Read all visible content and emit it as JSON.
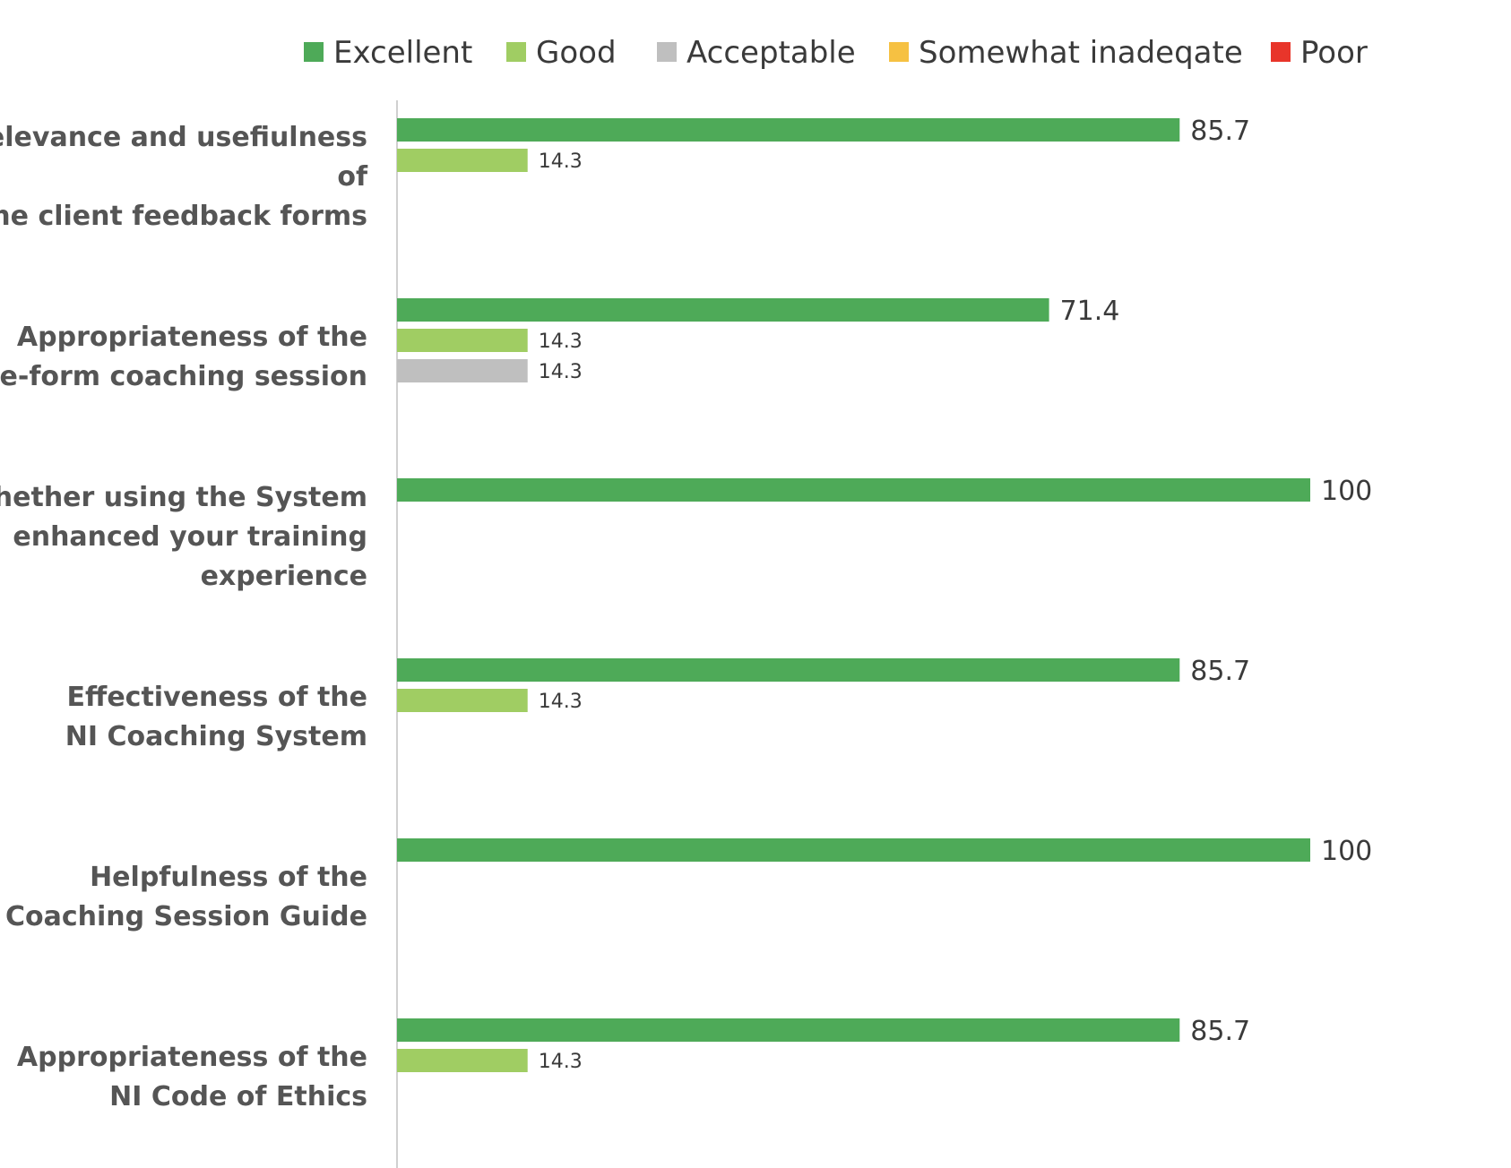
{
  "chart_data": {
    "type": "bar",
    "orientation": "horizontal",
    "title": "",
    "xlabel": "",
    "ylabel": "",
    "xlim": [
      0,
      100
    ],
    "grid": false,
    "legend_position": "top",
    "categories": [
      "Relevance and usefiulness of the client feedback forms",
      "Appropriateness of the free-form coaching session",
      "Whether using the System enhanced your training experience",
      "Effectiveness of the NI Coaching System",
      "Helpfulness of the Coaching Session Guide",
      "Appropriateness of the NI Code of Ethics"
    ],
    "category_lines": [
      [
        "Relevance and usefiulness",
        "of",
        "the client feedback forms"
      ],
      [
        "Appropriateness of the",
        "free-form coaching session"
      ],
      [
        "Whether using the System",
        "enhanced your training",
        "experience"
      ],
      [
        "Effectiveness of the",
        "NI Coaching System"
      ],
      [
        "Helpfulness of the",
        "Coaching Session Guide"
      ],
      [
        "Appropriateness of the",
        "NI Code of Ethics"
      ]
    ],
    "series": [
      {
        "name": "Excellent",
        "color": "#4eaa58",
        "values": [
          85.7,
          71.4,
          100,
          85.7,
          100,
          85.7
        ]
      },
      {
        "name": "Good",
        "color": "#a0cd63",
        "values": [
          14.3,
          14.3,
          null,
          14.3,
          null,
          14.3
        ]
      },
      {
        "name": "Acceptable",
        "color": "#bfbfbf",
        "values": [
          null,
          14.3,
          null,
          null,
          null,
          null
        ]
      },
      {
        "name": "Somewhat inadeqate",
        "color": "#f6c142",
        "values": [
          null,
          null,
          null,
          null,
          null,
          null
        ]
      },
      {
        "name": "Poor",
        "color": "#e8352a",
        "values": [
          null,
          null,
          null,
          null,
          null,
          null
        ]
      }
    ]
  }
}
